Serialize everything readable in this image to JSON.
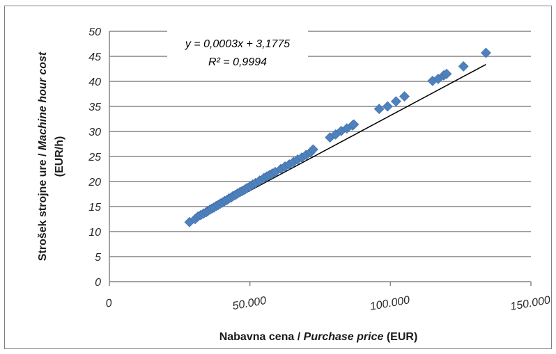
{
  "chart_data": {
    "type": "scatter",
    "xlabel": {
      "plain": "Nabavna cena / ",
      "italic": "Purchase price",
      "unit": " (EUR)"
    },
    "ylabel": {
      "plain": "Strošek strojne ure / ",
      "italic": "Machine hour cost",
      "unit": "(EUR/h)"
    },
    "xlim": [
      0,
      150000
    ],
    "ylim": [
      0,
      50
    ],
    "x_ticks": [
      0,
      50000,
      100000,
      150000
    ],
    "x_tick_labels": [
      "0",
      "50.000",
      "100.000",
      "150.000"
    ],
    "y_ticks": [
      0,
      5,
      10,
      15,
      20,
      25,
      30,
      35,
      40,
      45,
      50
    ],
    "y_tick_labels": [
      "0",
      "5",
      "10",
      "15",
      "20",
      "25",
      "30",
      "35",
      "40",
      "45",
      "50"
    ],
    "grid": "horizontal",
    "marker": "diamond",
    "colors": {
      "marker": "#4f81bd",
      "trendline": "#000000",
      "grid": "#868686"
    },
    "trendline": {
      "slope": 0.0003,
      "intercept": 3.1775,
      "equation": "y = 0,0003x + 3,1775",
      "r2_label": "R² = 0,9994",
      "x_range": [
        28500,
        134000
      ]
    },
    "series": [
      {
        "x": [
          28500,
          30500,
          31500,
          32500,
          33500,
          34500,
          35000,
          35800,
          36500,
          37200,
          38000,
          38700,
          39500,
          40200,
          41000,
          41800,
          42500,
          43300,
          44000,
          44800,
          45600,
          46500,
          47300,
          48200,
          49000,
          50000,
          51000,
          52000,
          53500,
          55000,
          56000,
          57000,
          58000,
          59000,
          61000,
          62500,
          64000,
          65500,
          67000,
          68500,
          70000,
          71500,
          72500,
          78500,
          80500,
          82500,
          84500,
          86500,
          87000,
          96000,
          99000,
          102000,
          105000,
          115000,
          117000,
          119000,
          120000,
          126000,
          134000
        ],
        "y": [
          11.9,
          12.5,
          13.0,
          13.3,
          13.6,
          13.9,
          14.1,
          14.4,
          14.6,
          14.8,
          15.1,
          15.3,
          15.6,
          15.8,
          16.1,
          16.3,
          16.6,
          16.8,
          17.1,
          17.3,
          17.6,
          17.9,
          18.1,
          18.4,
          18.7,
          19.0,
          19.4,
          19.7,
          20.2,
          20.7,
          21.0,
          21.3,
          21.6,
          21.9,
          22.5,
          23.0,
          23.4,
          23.9,
          24.4,
          24.8,
          25.3,
          25.8,
          26.4,
          28.8,
          29.4,
          30.1,
          30.6,
          31.2,
          31.4,
          34.5,
          35.0,
          36.0,
          37.0,
          40.1,
          40.5,
          41.2,
          41.5,
          43.0,
          45.7
        ]
      }
    ]
  }
}
